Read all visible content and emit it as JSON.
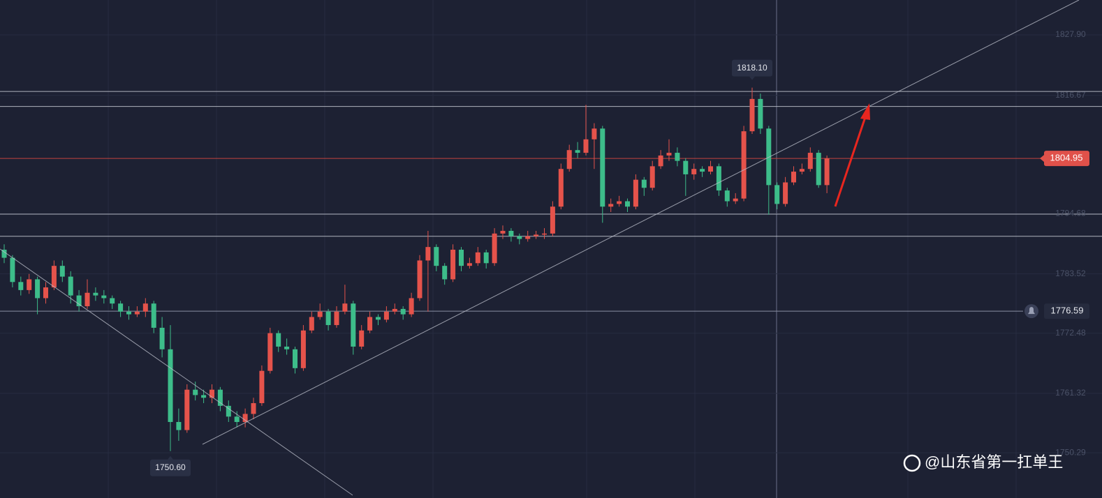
{
  "chart_data": {
    "type": "candlestick",
    "ylim": [
      1741.88,
      1834.38
    ],
    "yticks": [
      {
        "value": 1827.9,
        "label": "1827.90"
      },
      1816.67,
      1794.68,
      1783.52,
      1772.48,
      1761.32,
      1750.29
    ],
    "grid": true,
    "up_color": "#e5534b",
    "down_color": "#3dbd8a",
    "levels": [
      1817.4,
      1814.6,
      1794.6,
      1790.5
    ],
    "current_price": 1804.95,
    "alert_price": 1776.59,
    "annotations": [
      {
        "value": 1818.1,
        "label": "1818.10"
      },
      {
        "value": 1750.6,
        "label": "1750.60"
      }
    ],
    "candles": [
      [
        1788.0,
        1789.0,
        1785.5,
        1786.5
      ],
      [
        1786.5,
        1787.0,
        1781.0,
        1782.0
      ],
      [
        1782.0,
        1783.0,
        1779.5,
        1780.5
      ],
      [
        1780.5,
        1783.5,
        1779.8,
        1782.5
      ],
      [
        1782.5,
        1783.0,
        1776.0,
        1779.0
      ],
      [
        1779.0,
        1782.0,
        1778.0,
        1781.0
      ],
      [
        1781.0,
        1786.0,
        1780.5,
        1785.0
      ],
      [
        1785.0,
        1786.0,
        1782.0,
        1783.0
      ],
      [
        1783.0,
        1784.0,
        1778.0,
        1779.5
      ],
      [
        1779.5,
        1780.5,
        1776.5,
        1777.5
      ],
      [
        1777.5,
        1782.5,
        1777.0,
        1780.0
      ],
      [
        1780.0,
        1781.0,
        1778.5,
        1779.5
      ],
      [
        1779.5,
        1780.5,
        1778.0,
        1779.0
      ],
      [
        1779.0,
        1779.5,
        1777.0,
        1778.0
      ],
      [
        1778.0,
        1778.5,
        1775.5,
        1776.5
      ],
      [
        1776.5,
        1777.5,
        1775.0,
        1776.0
      ],
      [
        1776.0,
        1777.5,
        1775.5,
        1776.5
      ],
      [
        1776.5,
        1779.0,
        1775.5,
        1778.0
      ],
      [
        1778.0,
        1778.5,
        1772.5,
        1773.5
      ],
      [
        1773.5,
        1775.5,
        1768.0,
        1769.5
      ],
      [
        1769.5,
        1774.0,
        1750.6,
        1756.0
      ],
      [
        1756.0,
        1758.5,
        1752.5,
        1754.5
      ],
      [
        1754.5,
        1763.0,
        1754.0,
        1762.0
      ],
      [
        1762.0,
        1763.5,
        1760.0,
        1761.0
      ],
      [
        1761.0,
        1762.0,
        1759.5,
        1760.5
      ],
      [
        1760.5,
        1763.0,
        1759.5,
        1762.0
      ],
      [
        1762.0,
        1762.5,
        1758.0,
        1759.0
      ],
      [
        1759.0,
        1760.0,
        1756.0,
        1757.0
      ],
      [
        1757.0,
        1758.0,
        1755.0,
        1756.0
      ],
      [
        1756.0,
        1758.5,
        1755.0,
        1757.5
      ],
      [
        1757.5,
        1760.5,
        1756.5,
        1759.5
      ],
      [
        1759.5,
        1766.5,
        1759.0,
        1765.5
      ],
      [
        1765.5,
        1773.5,
        1765.0,
        1772.5
      ],
      [
        1772.5,
        1773.0,
        1769.0,
        1770.0
      ],
      [
        1770.0,
        1771.5,
        1768.5,
        1769.5
      ],
      [
        1769.5,
        1770.0,
        1765.0,
        1766.0
      ],
      [
        1766.0,
        1774.0,
        1765.5,
        1773.0
      ],
      [
        1773.0,
        1776.5,
        1772.5,
        1775.5
      ],
      [
        1775.5,
        1778.0,
        1775.0,
        1776.5
      ],
      [
        1776.5,
        1777.0,
        1773.0,
        1774.0
      ],
      [
        1774.0,
        1777.5,
        1773.5,
        1776.5
      ],
      [
        1776.5,
        1781.5,
        1776.0,
        1778.0
      ],
      [
        1778.0,
        1778.5,
        1768.5,
        1770.0
      ],
      [
        1770.0,
        1774.0,
        1769.5,
        1773.0
      ],
      [
        1773.0,
        1776.5,
        1772.5,
        1775.5
      ],
      [
        1775.5,
        1776.0,
        1774.0,
        1775.0
      ],
      [
        1775.0,
        1777.5,
        1774.5,
        1776.5
      ],
      [
        1776.5,
        1778.0,
        1776.0,
        1777.0
      ],
      [
        1777.0,
        1777.5,
        1775.0,
        1776.0
      ],
      [
        1776.0,
        1780.0,
        1775.5,
        1779.0
      ],
      [
        1779.0,
        1787.0,
        1778.5,
        1786.0
      ],
      [
        1786.0,
        1791.5,
        1776.5,
        1788.5
      ],
      [
        1788.5,
        1789.0,
        1784.0,
        1785.0
      ],
      [
        1785.0,
        1785.5,
        1781.5,
        1782.5
      ],
      [
        1782.5,
        1789.0,
        1782.0,
        1788.0
      ],
      [
        1788.0,
        1788.5,
        1784.0,
        1785.0
      ],
      [
        1785.0,
        1786.5,
        1784.5,
        1785.5
      ],
      [
        1785.5,
        1788.5,
        1785.0,
        1787.5
      ],
      [
        1787.5,
        1788.0,
        1784.5,
        1785.5
      ],
      [
        1785.5,
        1792.0,
        1785.0,
        1791.0
      ],
      [
        1791.0,
        1792.5,
        1790.0,
        1791.5
      ],
      [
        1791.5,
        1792.0,
        1789.5,
        1790.5
      ],
      [
        1790.5,
        1791.0,
        1789.0,
        1790.0
      ],
      [
        1790.0,
        1791.5,
        1789.5,
        1790.5
      ],
      [
        1790.5,
        1791.5,
        1790.0,
        1790.8
      ],
      [
        1790.8,
        1792.0,
        1790.0,
        1791.0
      ],
      [
        1791.0,
        1797.0,
        1790.5,
        1796.0
      ],
      [
        1796.0,
        1804.0,
        1795.5,
        1803.0
      ],
      [
        1803.0,
        1807.5,
        1802.5,
        1806.5
      ],
      [
        1806.5,
        1808.0,
        1805.0,
        1806.0
      ],
      [
        1806.0,
        1814.9,
        1805.5,
        1808.5
      ],
      [
        1808.5,
        1811.5,
        1803.0,
        1810.5
      ],
      [
        1810.5,
        1811.0,
        1793.0,
        1796.0
      ],
      [
        1796.0,
        1797.5,
        1795.0,
        1796.5
      ],
      [
        1796.5,
        1798.0,
        1796.0,
        1797.0
      ],
      [
        1797.0,
        1797.5,
        1795.0,
        1796.0
      ],
      [
        1796.0,
        1802.0,
        1795.5,
        1801.0
      ],
      [
        1801.0,
        1801.5,
        1798.0,
        1799.5
      ],
      [
        1799.5,
        1804.5,
        1799.0,
        1803.5
      ],
      [
        1803.5,
        1806.5,
        1803.0,
        1805.5
      ],
      [
        1805.5,
        1808.5,
        1804.5,
        1806.0
      ],
      [
        1806.0,
        1807.0,
        1803.5,
        1804.5
      ],
      [
        1804.5,
        1805.0,
        1798.0,
        1802.0
      ],
      [
        1802.0,
        1804.0,
        1801.0,
        1803.0
      ],
      [
        1803.0,
        1803.5,
        1801.5,
        1802.5
      ],
      [
        1802.5,
        1804.5,
        1802.0,
        1803.5
      ],
      [
        1803.5,
        1804.0,
        1798.0,
        1799.0
      ],
      [
        1799.0,
        1799.5,
        1796.0,
        1797.0
      ],
      [
        1797.0,
        1798.5,
        1796.5,
        1797.5
      ],
      [
        1797.5,
        1811.0,
        1797.0,
        1810.0
      ],
      [
        1810.0,
        1818.1,
        1809.5,
        1816.0
      ],
      [
        1816.0,
        1817.0,
        1809.5,
        1810.5
      ],
      [
        1810.5,
        1811.0,
        1794.5,
        1800.0
      ],
      [
        1800.0,
        1800.5,
        1795.5,
        1796.5
      ],
      [
        1796.5,
        1801.5,
        1796.0,
        1800.5
      ],
      [
        1800.5,
        1803.5,
        1800.0,
        1802.5
      ],
      [
        1802.5,
        1804.0,
        1802.0,
        1803.0
      ],
      [
        1803.0,
        1807.0,
        1802.5,
        1806.0
      ],
      [
        1806.0,
        1806.5,
        1799.5,
        1800.0
      ],
      [
        1800.0,
        1805.5,
        1798.5,
        1804.95
      ]
    ]
  },
  "watermark": "@山东省第一扛单王"
}
